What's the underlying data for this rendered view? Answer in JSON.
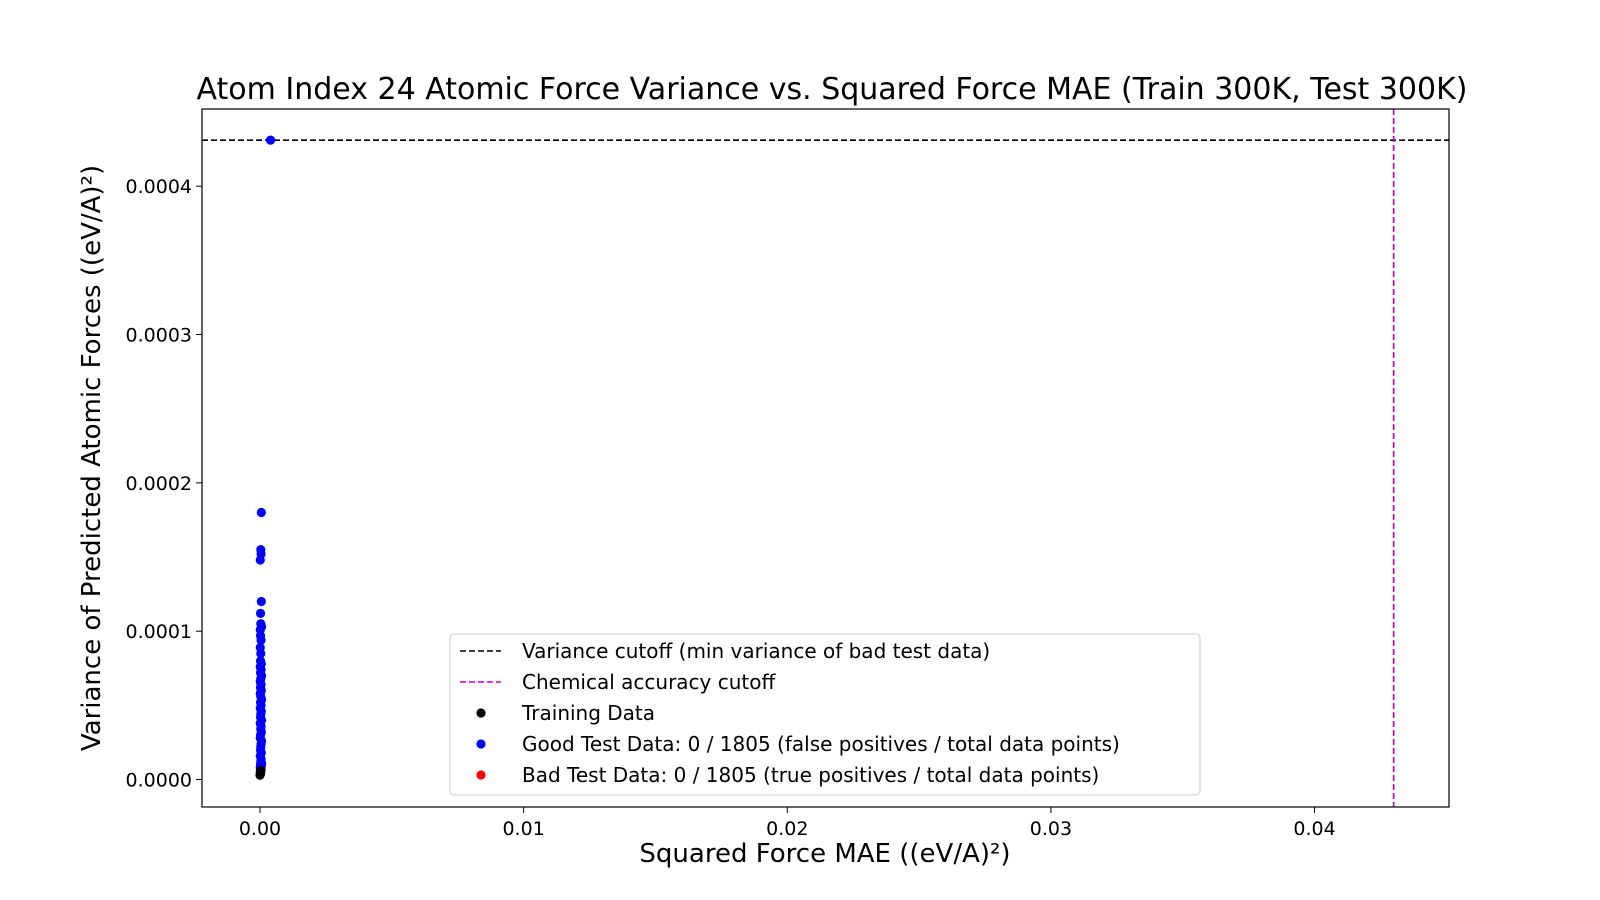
{
  "chart_data": {
    "type": "scatter",
    "title": "Atom Index 24 Atomic Force Variance vs. Squared Force MAE (Train 300K, Test 300K)",
    "xlabel": "Squared Force MAE ((eV/A)²)",
    "ylabel": "Variance of Predicted Atomic Forces ((eV/A)²)",
    "xlim": [
      -0.0022,
      0.0451
    ],
    "ylim": [
      -1.85e-05,
      0.000452
    ],
    "x_ticks": [
      0.0,
      0.01,
      0.02,
      0.03,
      0.04
    ],
    "x_tick_labels": [
      "0.00",
      "0.01",
      "0.02",
      "0.03",
      "0.04"
    ],
    "y_ticks": [
      0.0,
      0.0001,
      0.0002,
      0.0003,
      0.0004
    ],
    "y_tick_labels": [
      "0.0000",
      "0.0001",
      "0.0002",
      "0.0003",
      "0.0004"
    ],
    "grid": false,
    "legend_placement": "lower-center",
    "reference_lines": {
      "variance_cutoff": {
        "orientation": "horizontal",
        "y": 0.000431,
        "color": "#000000",
        "style": "dashed"
      },
      "chemical_accuracy_cutoff": {
        "orientation": "vertical",
        "x": 0.043,
        "color": "#bf00bf",
        "style": "dashed"
      }
    },
    "legend": [
      {
        "label": "Variance cutoff (min variance of bad test data)",
        "kind": "line",
        "color": "#000000"
      },
      {
        "label": "Chemical accuracy cutoff",
        "kind": "line",
        "color": "#bf00bf"
      },
      {
        "label": "Training Data",
        "kind": "marker",
        "color": "#000000"
      },
      {
        "label": "Good Test Data: 0 / 1805 (false positives / total data points)",
        "kind": "marker",
        "color": "#0000ff"
      },
      {
        "label": "Bad Test Data: 0 / 1805 (true positives / total data points)",
        "kind": "marker",
        "color": "#ff0000"
      }
    ],
    "series": [
      {
        "name": "Training Data",
        "color": "#000000",
        "points": [
          [
            0.0,
            3e-06
          ],
          [
            2e-05,
            4e-06
          ],
          [
            1e-05,
            5e-06
          ],
          [
            3e-05,
            6e-06
          ]
        ]
      },
      {
        "name": "Good Test Data: 0 / 1805 (false positives / total data points)",
        "color": "#0000ff",
        "points": [
          [
            0.0004,
            0.000431
          ],
          [
            5e-05,
            0.00018
          ],
          [
            3e-05,
            0.000155
          ],
          [
            4e-05,
            0.000152
          ],
          [
            1e-05,
            0.000148
          ],
          [
            5e-05,
            0.00012
          ],
          [
            2e-05,
            0.000112
          ],
          [
            3e-05,
            0.000105
          ],
          [
            6e-05,
            0.000103
          ],
          [
            1e-05,
            0.000101
          ],
          [
            2e-05,
            9.7e-05
          ],
          [
            4e-05,
            9.4e-05
          ],
          [
            1e-05,
            8.9e-05
          ],
          [
            3e-05,
            8.5e-05
          ],
          [
            2e-05,
            8e-05
          ],
          [
            5e-05,
            7.8e-05
          ],
          [
            1e-05,
            7.6e-05
          ],
          [
            4e-05,
            7.4e-05
          ],
          [
            2e-05,
            7.2e-05
          ],
          [
            6e-05,
            7e-05
          ],
          [
            3e-05,
            6.8e-05
          ],
          [
            1e-05,
            6.6e-05
          ],
          [
            4e-05,
            6.4e-05
          ],
          [
            2e-05,
            6.2e-05
          ],
          [
            5e-05,
            6e-05
          ],
          [
            1e-05,
            5.8e-05
          ],
          [
            3e-05,
            5.6e-05
          ],
          [
            6e-05,
            5.4e-05
          ],
          [
            2e-05,
            5.2e-05
          ],
          [
            4e-05,
            5e-05
          ],
          [
            1e-05,
            4.8e-05
          ],
          [
            5e-05,
            4.6e-05
          ],
          [
            3e-05,
            4.4e-05
          ],
          [
            2e-05,
            4.2e-05
          ],
          [
            6e-05,
            4e-05
          ],
          [
            1e-05,
            3.8e-05
          ],
          [
            4e-05,
            3.6e-05
          ],
          [
            3e-05,
            3.4e-05
          ],
          [
            5e-05,
            3.2e-05
          ],
          [
            2e-05,
            3e-05
          ],
          [
            1e-05,
            2.8e-05
          ],
          [
            6e-05,
            2.6e-05
          ],
          [
            4e-05,
            2.4e-05
          ],
          [
            3e-05,
            2.2e-05
          ],
          [
            2e-05,
            2e-05
          ],
          [
            5e-05,
            1.8e-05
          ],
          [
            1e-05,
            1.6e-05
          ],
          [
            4e-05,
            1.4e-05
          ],
          [
            3e-05,
            1.2e-05
          ],
          [
            6e-05,
            1.1e-05
          ],
          [
            2e-05,
            1e-05
          ],
          [
            5e-05,
            9e-06
          ],
          [
            1e-05,
            8e-06
          ],
          [
            3e-05,
            7e-06
          ],
          [
            4e-05,
            6e-06
          ]
        ]
      },
      {
        "name": "Bad Test Data: 0 / 1805 (true positives / total data points)",
        "color": "#ff0000",
        "points": []
      }
    ]
  }
}
